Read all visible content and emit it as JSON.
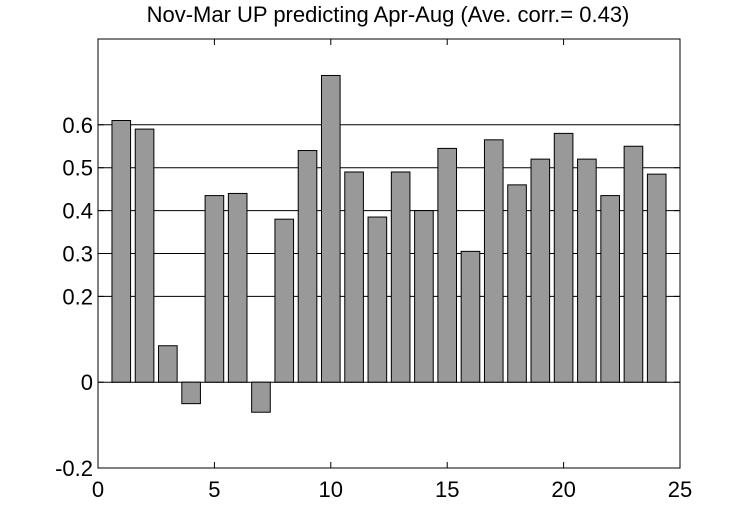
{
  "chart_data": {
    "type": "bar",
    "title": "Nov-Mar UP predicting Apr-Aug (Ave. corr.= 0.43)",
    "xlabel": "",
    "ylabel": "",
    "x": [
      1,
      2,
      3,
      4,
      5,
      6,
      7,
      8,
      9,
      10,
      11,
      12,
      13,
      14,
      15,
      16,
      17,
      18,
      19,
      20,
      21,
      22,
      23,
      24
    ],
    "values": [
      0.61,
      0.59,
      0.085,
      -0.05,
      0.435,
      0.44,
      -0.07,
      0.38,
      0.54,
      0.715,
      0.49,
      0.385,
      0.49,
      0.4,
      0.545,
      0.305,
      0.565,
      0.46,
      0.52,
      0.58,
      0.52,
      0.435,
      0.55,
      0.485
    ],
    "xlim": [
      0,
      25
    ],
    "ylim": [
      -0.2,
      0.8
    ],
    "x_ticks": [
      0,
      5,
      10,
      15,
      20,
      25
    ],
    "x_tick_labels": [
      "0",
      "5",
      "10",
      "15",
      "20",
      "25"
    ],
    "y_ticks": [
      -0.2,
      0,
      0.2,
      0.3,
      0.4,
      0.5,
      0.6
    ],
    "y_tick_labels": [
      "-0.2",
      "0",
      "0.2",
      "0.3",
      "0.4",
      "0.5",
      "0.6"
    ],
    "gridlines_y": [
      0,
      0.2,
      0.3,
      0.4,
      0.5,
      0.6
    ],
    "grid": "horizontal",
    "legend": "none",
    "bar_color": "#999999",
    "bar_edge_color": "#000000"
  }
}
